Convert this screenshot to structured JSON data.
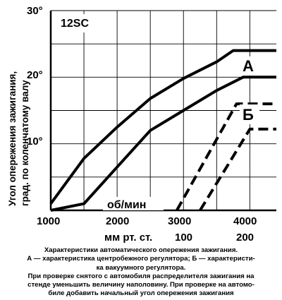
{
  "chart_data": {
    "type": "line",
    "panel_label": "12SC",
    "ylabel": "Угол опережения зажигания, град. по коленчатому валу",
    "ylabel_lines": [
      "Угол опережения зажигания,",
      "град. по коленчатому валу"
    ],
    "y_ticks": [
      "30°",
      "20°",
      "10°"
    ],
    "y_tick_values": [
      30,
      20,
      10
    ],
    "ylim": [
      0,
      30
    ],
    "x_unit_label": "об/мин",
    "x_ticks": [
      "1000",
      "2000",
      "3000",
      "4000"
    ],
    "x_tick_values": [
      1000,
      2000,
      3000,
      4000
    ],
    "xlim": [
      1000,
      4400
    ],
    "x2_label": "мм рт. ст.",
    "x2_ticks": [
      "100",
      "200"
    ],
    "x2_tick_values": [
      3000,
      4000
    ],
    "grid": true,
    "series": [
      {
        "name": "А",
        "style": "solid",
        "x": [
          1000,
          1500,
          2000,
          2500,
          3000,
          3500,
          3750,
          4400
        ],
        "y": [
          1,
          7.8,
          12.5,
          16.8,
          19.8,
          22.3,
          24,
          24
        ]
      },
      {
        "name": "А",
        "style": "solid",
        "x": [
          1000,
          1500,
          2000,
          2500,
          3000,
          3500,
          3900,
          4400
        ],
        "y": [
          0,
          1,
          6.5,
          12,
          15,
          18,
          20,
          20
        ]
      },
      {
        "name": "Б",
        "style": "dashed",
        "x": [
          2900,
          3800,
          4000,
          4400
        ],
        "y": [
          0,
          16,
          16,
          16
        ]
      },
      {
        "name": "Б",
        "style": "dashed",
        "x": [
          3250,
          4000,
          4150,
          4400
        ],
        "y": [
          0,
          12.2,
          12.2,
          12.2
        ]
      }
    ],
    "series_labels": [
      "А",
      "Б"
    ]
  },
  "caption": {
    "lines": [
      "Характеристики автоматического опережения зажигания.",
      "А — характеристика центробежного регулятора; Б — характеристи-",
      "ка вакуумного регулятора.",
      "При проверке снятого с автомобиля распределителя зажигания на",
      "стенде уменьшить величину наполовину. При проверке на автомо-",
      "биле добавить начальный угол опережения зажигания"
    ]
  },
  "colors": {
    "ink": "#000000",
    "background": "#ffffff"
  }
}
